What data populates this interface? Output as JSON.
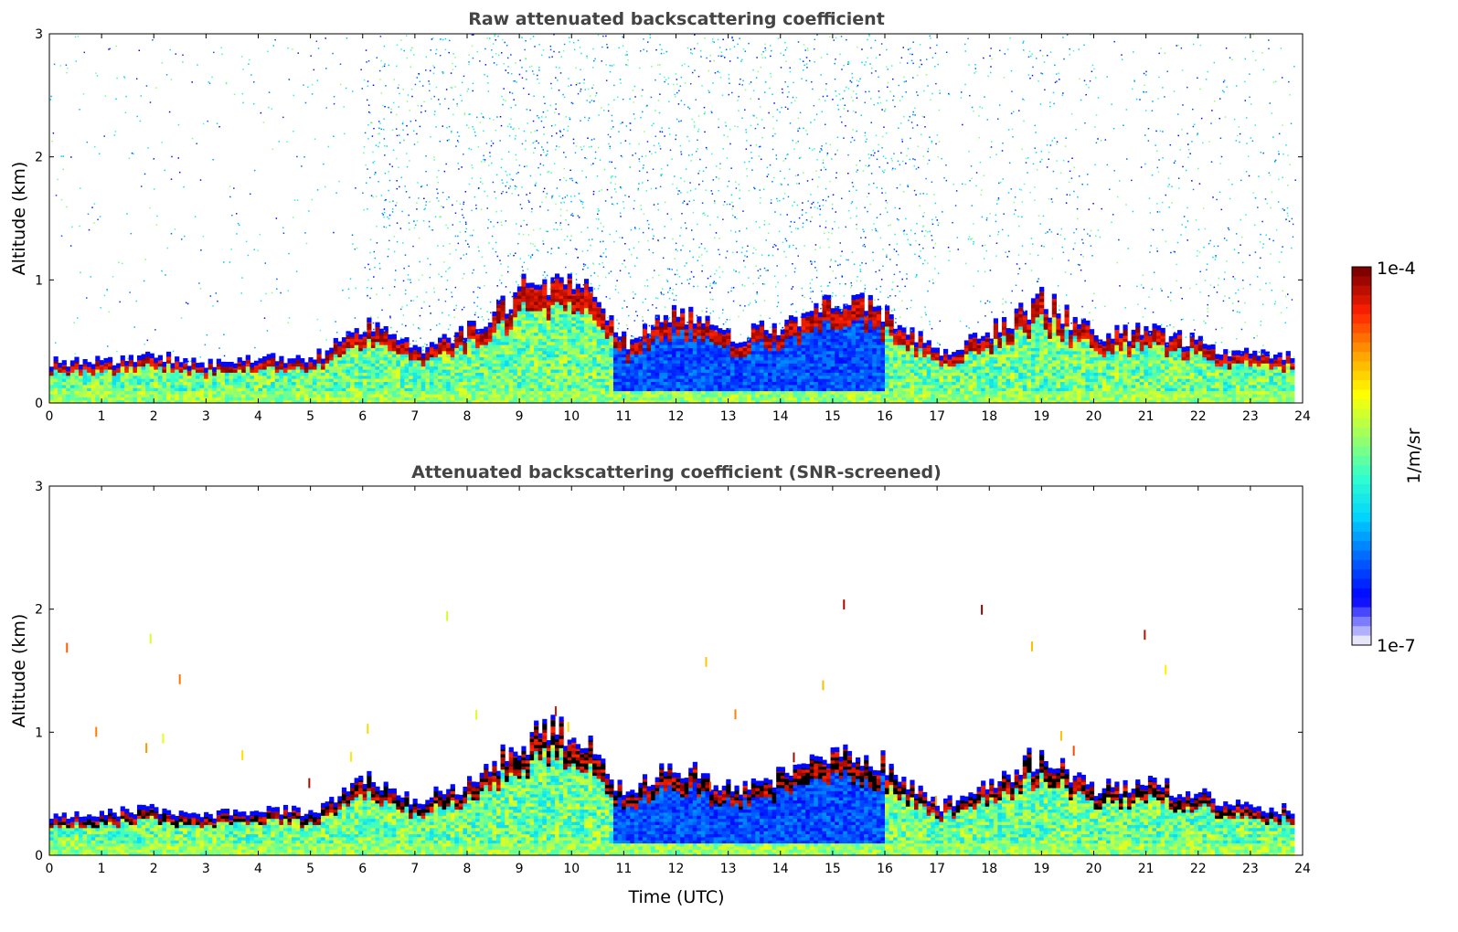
{
  "chart_data": [
    {
      "type": "heatmap",
      "title": "Raw attenuated backscattering coefficient",
      "xlabel": "",
      "ylabel": "Altitude (km)",
      "xlim": [
        0,
        24
      ],
      "ylim": [
        0,
        3
      ],
      "xticks": [
        "0",
        "1",
        "2",
        "3",
        "4",
        "5",
        "6",
        "7",
        "8",
        "9",
        "10",
        "11",
        "12",
        "13",
        "14",
        "15",
        "16",
        "17",
        "18",
        "19",
        "20",
        "21",
        "22",
        "23",
        "24"
      ],
      "yticks": [
        "0",
        "1",
        "2",
        "3"
      ],
      "data_end_hour": 23.8,
      "aerosol_layer_top_km": [
        0.3,
        0.3,
        0.35,
        0.28,
        0.33,
        0.32,
        0.6,
        0.4,
        0.55,
        0.9,
        1.0,
        0.45,
        0.7,
        0.5,
        0.6,
        0.8,
        0.7,
        0.35,
        0.55,
        0.8,
        0.5,
        0.55,
        0.45,
        0.35,
        0.33
      ],
      "noise_above": true
    },
    {
      "type": "heatmap",
      "title": "Attenuated backscattering coefficient (SNR-screened)",
      "xlabel": "Time (UTC)",
      "ylabel": "Altitude (km)",
      "xlim": [
        0,
        24
      ],
      "ylim": [
        0,
        3
      ],
      "xticks": [
        "0",
        "1",
        "2",
        "3",
        "4",
        "5",
        "6",
        "7",
        "8",
        "9",
        "10",
        "11",
        "12",
        "13",
        "14",
        "15",
        "16",
        "17",
        "18",
        "19",
        "20",
        "21",
        "22",
        "23",
        "24"
      ],
      "yticks": [
        "0",
        "1",
        "2",
        "3"
      ],
      "data_end_hour": 23.8,
      "aerosol_layer_top_km": [
        0.3,
        0.3,
        0.35,
        0.28,
        0.33,
        0.32,
        0.6,
        0.4,
        0.55,
        0.9,
        1.0,
        0.45,
        0.7,
        0.5,
        0.6,
        0.8,
        0.7,
        0.35,
        0.55,
        0.8,
        0.5,
        0.55,
        0.45,
        0.35,
        0.33
      ],
      "noise_above": false
    }
  ],
  "colorbar": {
    "label": "1/m/sr",
    "max_label": "1e-4",
    "min_label": "1e-7",
    "scale": "log",
    "colormap": [
      "#e6e6fa",
      "#0000ff",
      "#0064ff",
      "#00d4ff",
      "#33ffcc",
      "#a0ff60",
      "#ffff00",
      "#ffa000",
      "#ff2000",
      "#800000"
    ]
  }
}
